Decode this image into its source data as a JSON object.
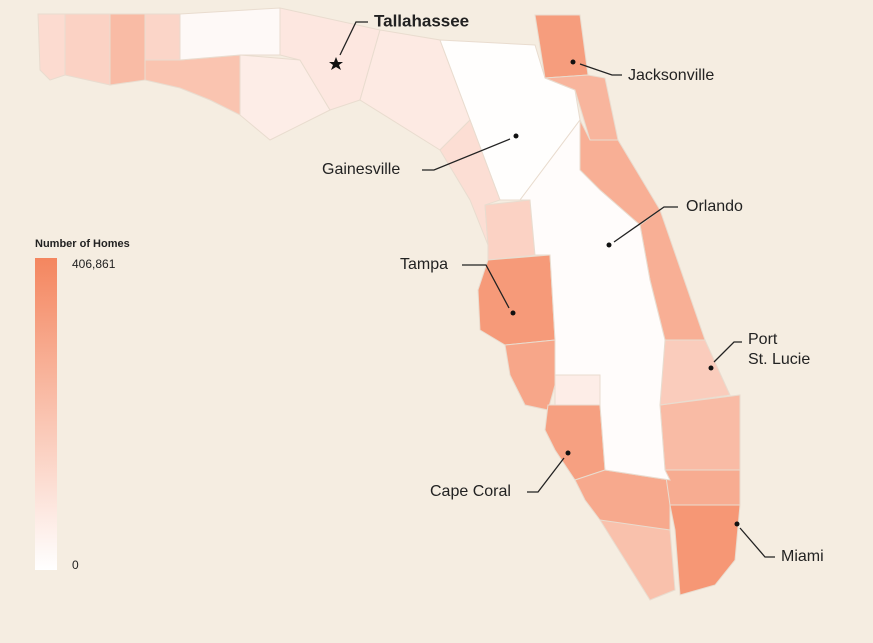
{
  "map": {
    "legend": {
      "title": "Number of Homes",
      "max": {
        "value": 406861,
        "label": "406,861"
      },
      "min": 0,
      "color_max": "#f4865f",
      "color_min": "#ffffff"
    },
    "region_values": [
      120000,
      150000,
      230000,
      140000,
      200000,
      20000,
      60000,
      80000,
      70000,
      5000,
      330000,
      250000,
      270000,
      110000,
      150000,
      340000,
      300000,
      320000,
      290000,
      210000,
      350000,
      280000,
      230000,
      170000,
      270000,
      10000,
      60000
    ],
    "cities": {
      "tallahassee": "Tallahassee",
      "jacksonville": "Jacksonville",
      "gainesville": "Gainesville",
      "orlando": "Orlando",
      "tampa": "Tampa",
      "port_st_lucie": [
        "Port",
        "St. Lucie"
      ],
      "cape_coral": "Cape Coral",
      "miami": "Miami"
    }
  }
}
